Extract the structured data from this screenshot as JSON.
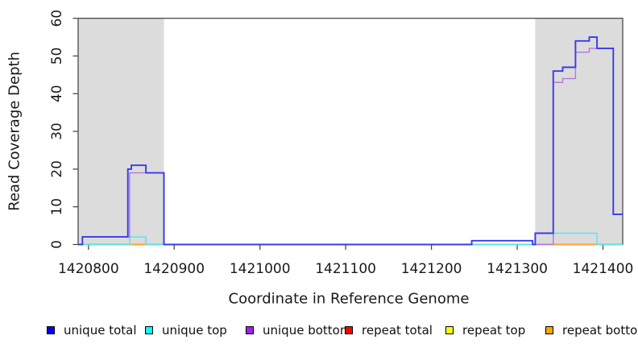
{
  "figure": {
    "background": "#ffffff"
  },
  "axis_style": {
    "box_color": "#3c3c3c",
    "tick_color": "#3c3c3c",
    "tick_label_color": "#1a1a1a",
    "shaded_region_color": "#dcdcdc"
  },
  "chart_data": {
    "type": "line",
    "subtype": "step",
    "title": "",
    "xlabel": "Coordinate in Reference Genome",
    "ylabel": "Read Coverage Depth",
    "xlim": [
      1420788,
      1421423
    ],
    "ylim": [
      0,
      60
    ],
    "x_ticks": [
      1420800,
      1420900,
      1421000,
      1421100,
      1421200,
      1421300,
      1421400
    ],
    "y_ticks": [
      0,
      10,
      20,
      30,
      40,
      50,
      60
    ],
    "grid": false,
    "legend_position": "bottom",
    "shaded_regions": [
      {
        "x0": 1420788,
        "x1": 1420888
      },
      {
        "x0": 1421321,
        "x1": 1421423
      }
    ],
    "series": [
      {
        "name": "unique total",
        "legend_color": "#0000f0",
        "line_color": "#3a3ae8",
        "line_width": 1.9,
        "points": [
          [
            1420788,
            0
          ],
          [
            1420793,
            2
          ],
          [
            1420846,
            20
          ],
          [
            1420850,
            21
          ],
          [
            1420867,
            19
          ],
          [
            1420888,
            0
          ],
          [
            1421247,
            1
          ],
          [
            1421318,
            0
          ],
          [
            1421321,
            3
          ],
          [
            1421342,
            46
          ],
          [
            1421353,
            47
          ],
          [
            1421368,
            54
          ],
          [
            1421384,
            55
          ],
          [
            1421393,
            52
          ],
          [
            1421412,
            8
          ]
        ],
        "x_end": 1421423
      },
      {
        "name": "unique top",
        "legend_color": "#00ffff",
        "line_color": "#55e6ec",
        "line_width": 1.5,
        "points": [
          [
            1420788,
            0
          ],
          [
            1420848,
            2
          ],
          [
            1420867,
            0
          ],
          [
            1421321,
            3
          ],
          [
            1421393,
            0
          ]
        ],
        "x_end": 1421423
      },
      {
        "name": "unique bottom",
        "legend_color": "#a020f0",
        "line_color": "#b278dc",
        "line_width": 1.4,
        "points": [
          [
            1420788,
            0
          ],
          [
            1420793,
            2
          ],
          [
            1420848,
            19
          ],
          [
            1420888,
            0
          ],
          [
            1421247,
            1
          ],
          [
            1421318,
            0
          ],
          [
            1421342,
            43
          ],
          [
            1421353,
            44
          ],
          [
            1421368,
            51
          ],
          [
            1421384,
            52
          ],
          [
            1421412,
            8
          ]
        ],
        "x_end": 1421423
      },
      {
        "name": "repeat total",
        "legend_color": "#ff0000",
        "line_color": "#e8637e",
        "line_width": 1.3,
        "points": [
          [
            1420788,
            0
          ]
        ],
        "x_end": 1421423
      },
      {
        "name": "repeat top",
        "legend_color": "#ffff00",
        "line_color": "#f5f046",
        "line_width": 1.3,
        "points": [
          [
            1420788,
            0
          ]
        ],
        "x_end": 1421423
      },
      {
        "name": "repeat bottom",
        "legend_color": "#ffa500",
        "line_color": "#ffa02e",
        "line_width": 1.7,
        "points": [
          [
            1420788,
            0
          ]
        ],
        "x_end": 1421423
      }
    ],
    "draw_order": [
      "repeat top",
      "repeat total",
      "repeat bottom",
      "unique top",
      "unique bottom",
      "unique total"
    ],
    "legend": [
      {
        "label": "unique total",
        "color": "#0000f0"
      },
      {
        "label": "unique top",
        "color": "#00ffff"
      },
      {
        "label": "unique bottom",
        "color": "#a020f0"
      },
      {
        "label": "repeat total",
        "color": "#ff0000"
      },
      {
        "label": "repeat top",
        "color": "#ffff00"
      },
      {
        "label": "repeat bottom",
        "color": "#ffa500"
      }
    ]
  }
}
